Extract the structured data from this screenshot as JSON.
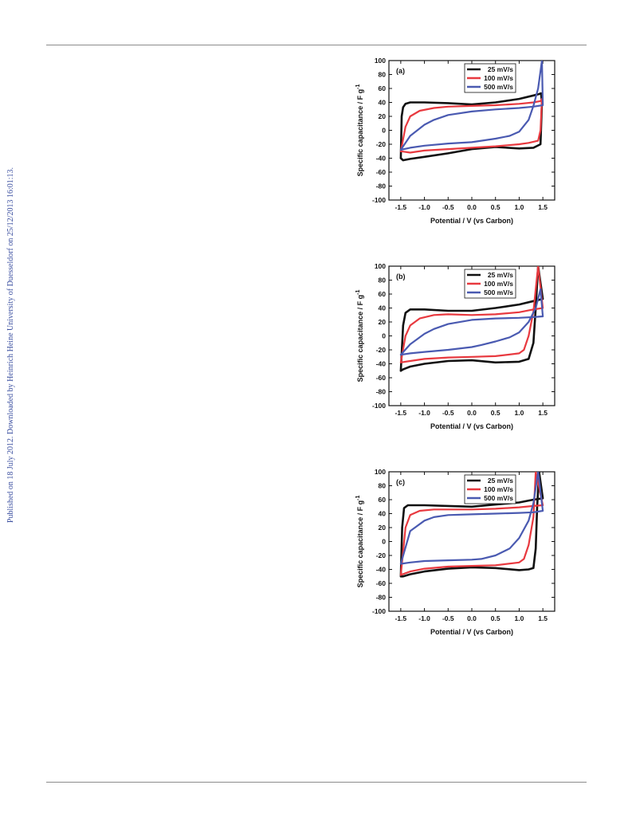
{
  "side_note": "Published on 18 July 2012. Downloaded by Heinrich Heine University of Duesseldorf on 25/12/2013 16:01:13.",
  "colors": {
    "25 mV/s": "#111111",
    "100 mV/s": "#e8393f",
    "500 mV/s": "#4a5ab1"
  },
  "chart_data": [
    {
      "type": "line",
      "panel_label": "(a)",
      "xlabel": "Potential / V (vs Carbon)",
      "ylabel": "Specific capacitance / F g",
      "ylabel_sup": "-1",
      "xlim": [
        -1.75,
        1.75
      ],
      "ylim": [
        -100,
        100
      ],
      "xticks": [
        -1.5,
        -1.0,
        -0.5,
        0.0,
        0.5,
        1.0,
        1.5
      ],
      "xtick_labels": [
        "-1.5",
        "-1.0",
        "-0.5",
        "0.0",
        "0.5",
        "1.0",
        "1.5"
      ],
      "yticks": [
        -100,
        -80,
        -60,
        -40,
        -20,
        0,
        20,
        40,
        60,
        80,
        100
      ],
      "ytick_labels": [
        "-100",
        "-80",
        "-60",
        "-40",
        "-20",
        "0",
        "20",
        "40",
        "60",
        "80",
        "100"
      ],
      "legend_position": "top-right",
      "series": [
        {
          "name": "25 mV/s",
          "x": [
            -1.5,
            -1.48,
            -1.45,
            -1.4,
            -1.3,
            -1.0,
            -0.5,
            0,
            0.5,
            1.0,
            1.3,
            1.42,
            1.46,
            1.48,
            1.45,
            1.3,
            1.0,
            0.5,
            0,
            -0.5,
            -1.0,
            -1.3,
            -1.45,
            -1.5
          ],
          "y": [
            -40,
            20,
            33,
            38,
            40,
            40,
            39,
            37,
            40,
            45,
            50,
            52,
            53,
            40,
            -20,
            -25,
            -26,
            -24,
            -27,
            -33,
            -38,
            -41,
            -43,
            -40
          ]
        },
        {
          "name": "100 mV/s",
          "x": [
            -1.5,
            -1.4,
            -1.3,
            -1.1,
            -0.8,
            -0.5,
            0,
            0.5,
            1.0,
            1.3,
            1.45,
            1.48,
            1.45,
            1.4,
            1.2,
            1.0,
            0.5,
            0,
            -0.5,
            -1.0,
            -1.3,
            -1.5
          ],
          "y": [
            -30,
            5,
            20,
            28,
            32,
            34,
            35,
            36,
            38,
            40,
            42,
            45,
            0,
            -15,
            -18,
            -20,
            -23,
            -25,
            -27,
            -29,
            -32,
            -30
          ]
        },
        {
          "name": "500 mV/s",
          "x": [
            -1.5,
            -1.3,
            -1.0,
            -0.8,
            -0.5,
            0,
            0.5,
            1.0,
            1.3,
            1.5,
            1.48,
            1.4,
            1.3,
            1.2,
            1.0,
            0.8,
            0.5,
            0.2,
            0,
            -0.5,
            -1.0,
            -1.3,
            -1.5
          ],
          "y": [
            -28,
            -8,
            8,
            15,
            22,
            27,
            30,
            32,
            34,
            36,
            100,
            60,
            35,
            15,
            -2,
            -8,
            -12,
            -15,
            -17,
            -19,
            -22,
            -25,
            -28
          ]
        }
      ]
    },
    {
      "type": "line",
      "panel_label": "(b)",
      "xlabel": "Potential / V (vs Carbon)",
      "ylabel": "Specific capacitance / F g",
      "ylabel_sup": "-1",
      "xlim": [
        -1.75,
        1.75
      ],
      "ylim": [
        -100,
        100
      ],
      "xticks": [
        -1.5,
        -1.0,
        -0.5,
        0.0,
        0.5,
        1.0,
        1.5
      ],
      "xtick_labels": [
        "-1.5",
        "-1.0",
        "-0.5",
        "0.0",
        "0.5",
        "1.0",
        "1.5"
      ],
      "yticks": [
        -100,
        -80,
        -60,
        -40,
        -20,
        0,
        20,
        40,
        60,
        80,
        100
      ],
      "ytick_labels": [
        "-100",
        "-80",
        "-60",
        "-40",
        "-20",
        "0",
        "20",
        "40",
        "60",
        "80",
        "100"
      ],
      "legend_position": "top-right",
      "series": [
        {
          "name": "25 mV/s",
          "x": [
            -1.5,
            -1.45,
            -1.4,
            -1.3,
            -1.0,
            -0.5,
            0,
            0.5,
            1.0,
            1.3,
            1.5,
            1.4,
            1.35,
            1.3,
            1.2,
            1.0,
            0.5,
            0,
            -0.5,
            -1.0,
            -1.3,
            -1.45,
            -1.5
          ],
          "y": [
            -50,
            15,
            33,
            38,
            38,
            36,
            36,
            40,
            45,
            50,
            53,
            100,
            40,
            -10,
            -33,
            -37,
            -38,
            -35,
            -36,
            -40,
            -44,
            -48,
            -50
          ]
        },
        {
          "name": "100 mV/s",
          "x": [
            -1.5,
            -1.4,
            -1.3,
            -1.1,
            -0.8,
            -0.5,
            0,
            0.5,
            1.0,
            1.3,
            1.5,
            1.4,
            1.3,
            1.2,
            1.1,
            1.0,
            0.5,
            0,
            -0.5,
            -1.0,
            -1.3,
            -1.5
          ],
          "y": [
            -38,
            0,
            15,
            25,
            30,
            31,
            30,
            31,
            34,
            38,
            40,
            100,
            35,
            0,
            -20,
            -25,
            -29,
            -30,
            -31,
            -33,
            -36,
            -38
          ]
        },
        {
          "name": "500 mV/s",
          "x": [
            -1.5,
            -1.3,
            -1.0,
            -0.8,
            -0.5,
            0,
            0.5,
            1.0,
            1.3,
            1.5,
            1.45,
            1.35,
            1.2,
            1.0,
            0.8,
            0.5,
            0.2,
            0,
            -0.5,
            -1.0,
            -1.3,
            -1.5
          ],
          "y": [
            -27,
            -12,
            3,
            10,
            17,
            23,
            25,
            26,
            27,
            28,
            67,
            40,
            20,
            5,
            -2,
            -8,
            -13,
            -16,
            -20,
            -23,
            -25,
            -27
          ]
        }
      ]
    },
    {
      "type": "line",
      "panel_label": "(c)",
      "xlabel": "Potential / V (vs Carbon)",
      "ylabel": "Specific capacitance / F g",
      "ylabel_sup": "-1",
      "xlim": [
        -1.75,
        1.75
      ],
      "ylim": [
        -100,
        100
      ],
      "xticks": [
        -1.5,
        -1.0,
        -0.5,
        0.0,
        0.5,
        1.0,
        1.5
      ],
      "xtick_labels": [
        "-1.5",
        "-1.0",
        "-0.5",
        "0.0",
        "0.5",
        "1.0",
        "1.5"
      ],
      "yticks": [
        -100,
        -80,
        -60,
        -40,
        -20,
        0,
        20,
        40,
        60,
        80,
        100
      ],
      "ytick_labels": [
        "-100",
        "-80",
        "-60",
        "-40",
        "-20",
        "0",
        "20",
        "40",
        "60",
        "80",
        "100"
      ],
      "legend_position": "top-right",
      "series": [
        {
          "name": "25 mV/s",
          "x": [
            -1.5,
            -1.47,
            -1.43,
            -1.35,
            -1.0,
            -0.5,
            0,
            0.5,
            1.0,
            1.3,
            1.5,
            1.42,
            1.38,
            1.35,
            1.3,
            1.2,
            1.0,
            0.5,
            0,
            -0.5,
            -1.0,
            -1.3,
            -1.45,
            -1.5
          ],
          "y": [
            -50,
            20,
            48,
            52,
            52,
            51,
            50,
            53,
            56,
            60,
            62,
            100,
            50,
            -10,
            -38,
            -40,
            -41,
            -38,
            -37,
            -39,
            -43,
            -47,
            -50,
            -50
          ]
        },
        {
          "name": "100 mV/s",
          "x": [
            -1.5,
            -1.4,
            -1.3,
            -1.1,
            -0.8,
            -0.5,
            0,
            0.5,
            1.0,
            1.3,
            1.5,
            1.35,
            1.3,
            1.2,
            1.1,
            1.0,
            0.5,
            0,
            -0.5,
            -1.0,
            -1.3,
            -1.5
          ],
          "y": [
            -48,
            20,
            38,
            44,
            46,
            46,
            46,
            47,
            49,
            51,
            52,
            100,
            35,
            -5,
            -25,
            -30,
            -34,
            -35,
            -36,
            -39,
            -43,
            -48
          ]
        },
        {
          "name": "500 mV/s",
          "x": [
            -1.5,
            -1.3,
            -1.0,
            -0.8,
            -0.5,
            0,
            0.5,
            1.0,
            1.3,
            1.5,
            1.4,
            1.3,
            1.2,
            1.0,
            0.8,
            0.5,
            0.2,
            0,
            -0.5,
            -1.0,
            -1.3,
            -1.5
          ],
          "y": [
            -32,
            15,
            30,
            35,
            38,
            39,
            40,
            41,
            42,
            44,
            100,
            55,
            30,
            5,
            -10,
            -20,
            -25,
            -26,
            -27,
            -28,
            -30,
            -32
          ]
        }
      ]
    }
  ]
}
